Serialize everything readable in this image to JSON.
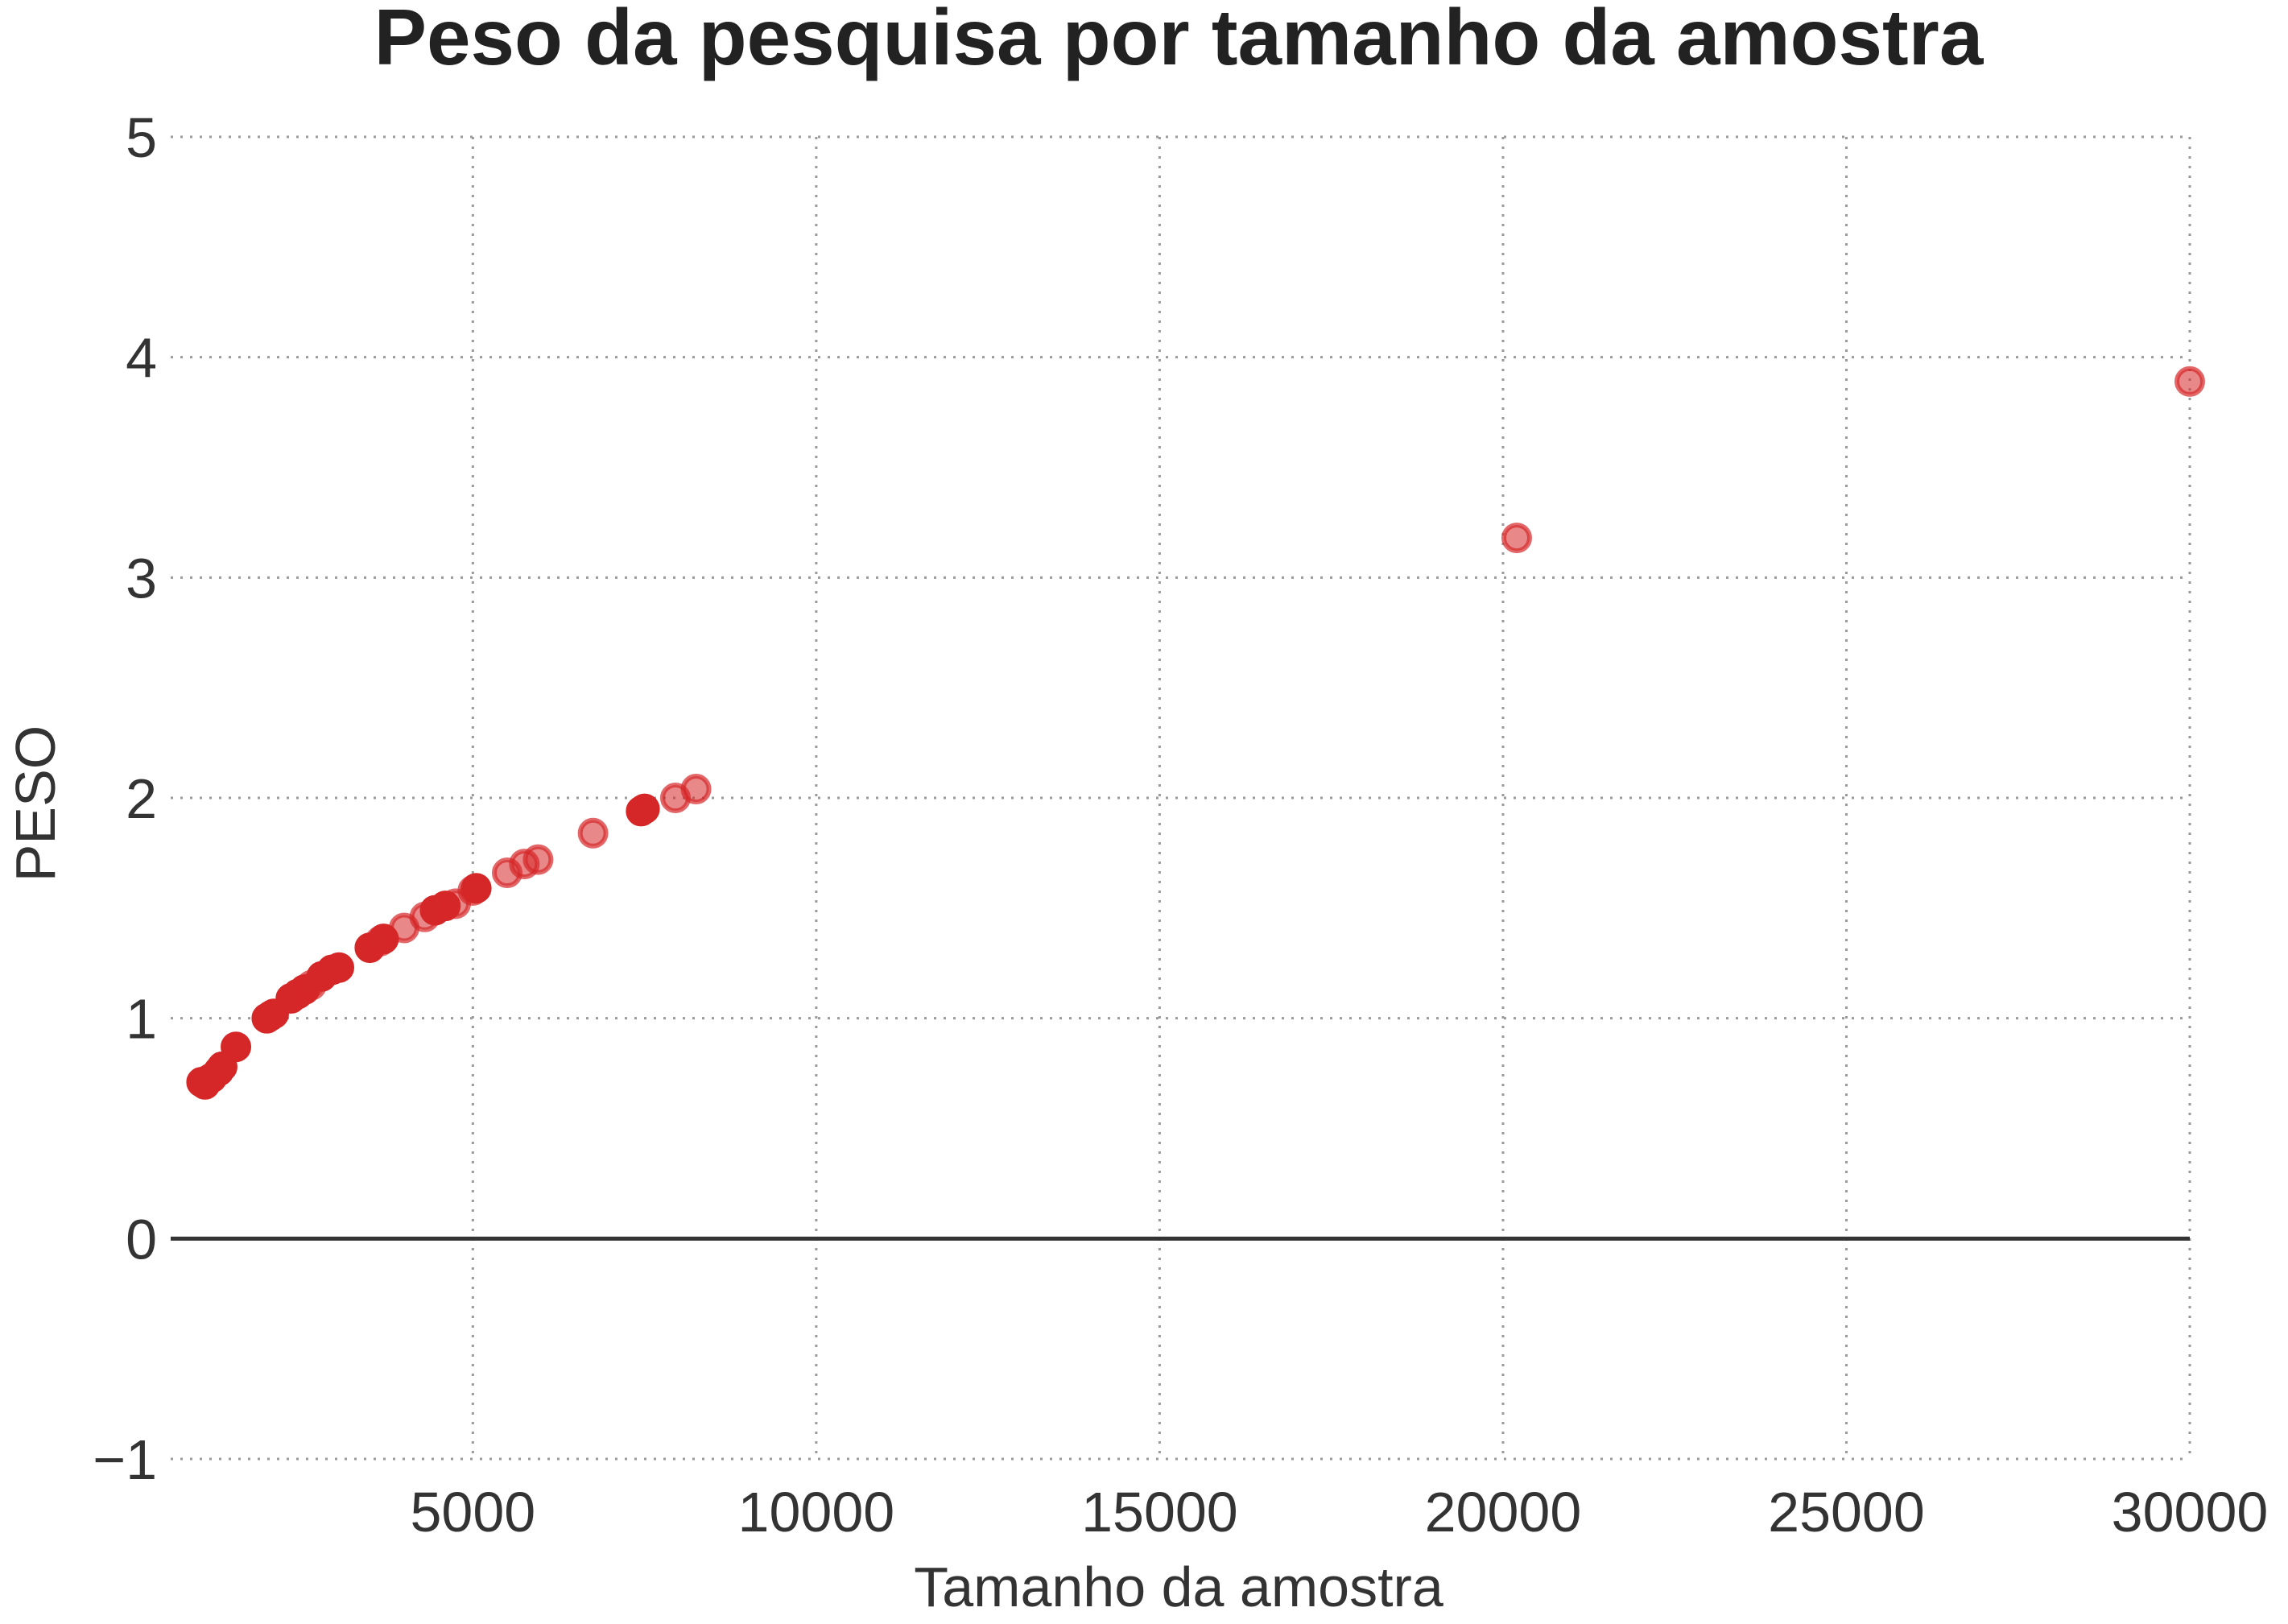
{
  "chart_data": {
    "type": "scatter",
    "title": "Peso da pesquisa por tamanho da amostra",
    "xlabel": "Tamanho da amostra",
    "ylabel": "PESO",
    "xlim": [
      600,
      30000
    ],
    "ylim": [
      -1,
      5
    ],
    "xticks": [
      5000,
      10000,
      15000,
      20000,
      25000,
      30000
    ],
    "xtick_labels": [
      "5000",
      "10000",
      "15000",
      "20000",
      "25000",
      "30000"
    ],
    "yticks": [
      5,
      4,
      3,
      2,
      1,
      0,
      -1
    ],
    "ytick_labels": [
      "5",
      "4",
      "3",
      "2",
      "1",
      "0",
      "−1"
    ],
    "grid": true,
    "zero_line": true,
    "marker_color": "#d62728",
    "series": [
      {
        "points": [
          {
            "x": 1050,
            "y": 0.71,
            "opacity": 1.0
          },
          {
            "x": 1100,
            "y": 0.7,
            "opacity": 1.0
          },
          {
            "x": 1150,
            "y": 0.72,
            "opacity": 1.0
          },
          {
            "x": 1200,
            "y": 0.73,
            "opacity": 1.0
          },
          {
            "x": 1300,
            "y": 0.76,
            "opacity": 1.0
          },
          {
            "x": 1350,
            "y": 0.78,
            "opacity": 1.0
          },
          {
            "x": 1550,
            "y": 0.87,
            "opacity": 1.0
          },
          {
            "x": 2000,
            "y": 1.0,
            "opacity": 1.0
          },
          {
            "x": 2050,
            "y": 1.01,
            "opacity": 1.0
          },
          {
            "x": 2100,
            "y": 1.02,
            "opacity": 1.0
          },
          {
            "x": 2350,
            "y": 1.09,
            "opacity": 1.0
          },
          {
            "x": 2450,
            "y": 1.11,
            "opacity": 1.0
          },
          {
            "x": 2550,
            "y": 1.13,
            "opacity": 1.0
          },
          {
            "x": 2650,
            "y": 1.15,
            "opacity": 0.6
          },
          {
            "x": 2800,
            "y": 1.19,
            "opacity": 1.0
          },
          {
            "x": 2950,
            "y": 1.22,
            "opacity": 1.0
          },
          {
            "x": 3050,
            "y": 1.23,
            "opacity": 1.0
          },
          {
            "x": 3500,
            "y": 1.32,
            "opacity": 1.0
          },
          {
            "x": 3650,
            "y": 1.35,
            "opacity": 0.6
          },
          {
            "x": 3700,
            "y": 1.36,
            "opacity": 1.0
          },
          {
            "x": 4000,
            "y": 1.41,
            "opacity": 0.6
          },
          {
            "x": 4300,
            "y": 1.46,
            "opacity": 0.6
          },
          {
            "x": 4450,
            "y": 1.49,
            "opacity": 1.0
          },
          {
            "x": 4600,
            "y": 1.51,
            "opacity": 1.0
          },
          {
            "x": 4750,
            "y": 1.52,
            "opacity": 0.6
          },
          {
            "x": 5000,
            "y": 1.58,
            "opacity": 0.6
          },
          {
            "x": 5050,
            "y": 1.59,
            "opacity": 1.0
          },
          {
            "x": 5500,
            "y": 1.66,
            "opacity": 0.6
          },
          {
            "x": 5750,
            "y": 1.7,
            "opacity": 0.6
          },
          {
            "x": 5950,
            "y": 1.72,
            "opacity": 0.6
          },
          {
            "x": 6750,
            "y": 1.84,
            "opacity": 0.6
          },
          {
            "x": 7450,
            "y": 1.94,
            "opacity": 1.0
          },
          {
            "x": 7500,
            "y": 1.95,
            "opacity": 1.0
          },
          {
            "x": 7950,
            "y": 2.0,
            "opacity": 0.6
          },
          {
            "x": 8250,
            "y": 2.04,
            "opacity": 0.6
          },
          {
            "x": 20200,
            "y": 3.18,
            "opacity": 0.6
          },
          {
            "x": 30000,
            "y": 3.89,
            "opacity": 0.6
          }
        ]
      }
    ]
  }
}
